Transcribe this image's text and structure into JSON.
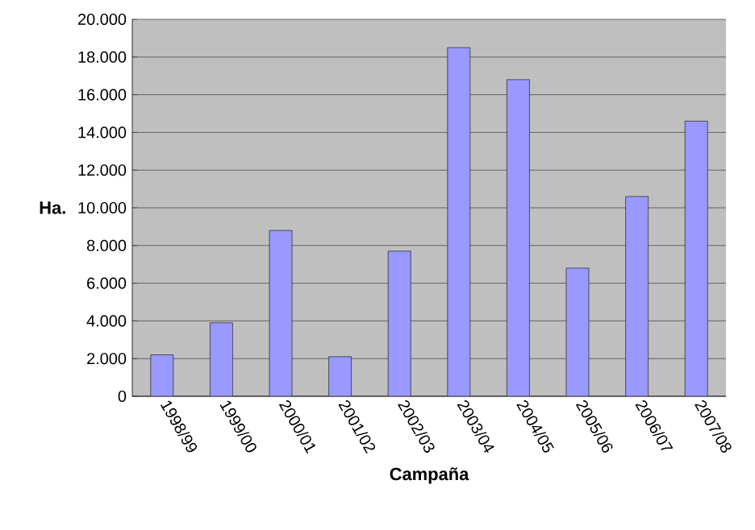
{
  "chart_data": {
    "type": "bar",
    "xlabel": "Campaña",
    "ylabel": "Ha.",
    "categories": [
      "1998/99",
      "1999/00",
      "2000/01",
      "2001/02",
      "2002/03",
      "2003/04",
      "2004/05",
      "2005/06",
      "2006/07",
      "2007/08"
    ],
    "values": [
      2200,
      3900,
      8800,
      2100,
      7700,
      18500,
      16800,
      6800,
      10600,
      14600
    ],
    "color": "#9999ff",
    "ylim": [
      0,
      20000
    ],
    "yticks": [
      0,
      {
        "value": 2000,
        "label": "2.000"
      },
      {
        "value": 4000,
        "label": "4.000"
      },
      {
        "value": 6000,
        "label": "6.000"
      },
      {
        "value": 8000,
        "label": "8.000"
      },
      {
        "value": 10000,
        "label": "10.000"
      },
      {
        "value": 12000,
        "label": "12.000"
      },
      {
        "value": 14000,
        "label": "14.000"
      },
      {
        "value": 16000,
        "label": "16.000"
      },
      {
        "value": 18000,
        "label": "18.000"
      },
      {
        "value": 20000,
        "label": "20.000"
      }
    ],
    "grid": "y"
  }
}
